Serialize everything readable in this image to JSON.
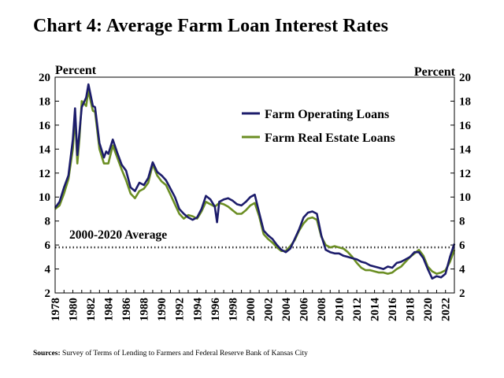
{
  "title": "Chart 4: Average Farm Loan Interest Rates",
  "sources": {
    "label": "Sources:",
    "text": "Survey of Terms of Lending to Farmers and Federal Reserve Bank of Kansas City"
  },
  "chart_data": {
    "type": "line",
    "title": "Chart 4: Average Farm Loan Interest Rates",
    "ylabel_left": "Percent",
    "ylabel_right": "Percent",
    "xlim": [
      1978,
      2023
    ],
    "ylim": [
      2,
      20
    ],
    "yticks": [
      2,
      4,
      6,
      8,
      10,
      12,
      14,
      16,
      18,
      20
    ],
    "xticks": [
      "1978",
      "1980",
      "1982",
      "1984",
      "1986",
      "1988",
      "1990",
      "1992",
      "1994",
      "1996",
      "1998",
      "2000",
      "2002",
      "2004",
      "2006",
      "2008",
      "2010",
      "2012",
      "2014",
      "2016",
      "2018",
      "2020",
      "2022"
    ],
    "grid": false,
    "legend_position": "top-right",
    "reference_line": {
      "label": "2000-2020 Average",
      "value": 5.8,
      "color": "#333333",
      "style": "dotted"
    },
    "series": [
      {
        "name": "Farm Operating Loans",
        "color": "#1c1c6b",
        "points": [
          [
            1978,
            9.1
          ],
          [
            1978.5,
            9.6
          ],
          [
            1979,
            10.8
          ],
          [
            1979.5,
            11.8
          ],
          [
            1980,
            14.8
          ],
          [
            1980.25,
            17.4
          ],
          [
            1980.5,
            13.5
          ],
          [
            1980.75,
            15.5
          ],
          [
            1981,
            17.5
          ],
          [
            1981.5,
            18.3
          ],
          [
            1981.75,
            19.4
          ],
          [
            1982,
            18.5
          ],
          [
            1982.25,
            17.6
          ],
          [
            1982.5,
            17.5
          ],
          [
            1983,
            14.5
          ],
          [
            1983.5,
            13.3
          ],
          [
            1983.75,
            13.8
          ],
          [
            1984,
            13.6
          ],
          [
            1984.5,
            14.8
          ],
          [
            1985,
            13.7
          ],
          [
            1985.5,
            12.7
          ],
          [
            1986,
            12.2
          ],
          [
            1986.5,
            10.8
          ],
          [
            1987,
            10.5
          ],
          [
            1987.5,
            11.2
          ],
          [
            1988,
            11.0
          ],
          [
            1988.5,
            11.6
          ],
          [
            1989,
            12.9
          ],
          [
            1989.5,
            12.1
          ],
          [
            1990,
            11.8
          ],
          [
            1990.5,
            11.4
          ],
          [
            1991,
            10.7
          ],
          [
            1991.5,
            10.0
          ],
          [
            1992,
            9.0
          ],
          [
            1992.5,
            8.6
          ],
          [
            1993,
            8.3
          ],
          [
            1993.5,
            8.1
          ],
          [
            1994,
            8.3
          ],
          [
            1994.5,
            9.0
          ],
          [
            1995,
            10.1
          ],
          [
            1995.5,
            9.8
          ],
          [
            1996,
            9.2
          ],
          [
            1996.25,
            7.9
          ],
          [
            1996.5,
            9.6
          ],
          [
            1997,
            9.8
          ],
          [
            1997.5,
            9.9
          ],
          [
            1998,
            9.7
          ],
          [
            1998.5,
            9.4
          ],
          [
            1999,
            9.3
          ],
          [
            1999.5,
            9.6
          ],
          [
            2000,
            10.0
          ],
          [
            2000.5,
            10.2
          ],
          [
            2001,
            8.7
          ],
          [
            2001.5,
            7.2
          ],
          [
            2002,
            6.8
          ],
          [
            2002.5,
            6.5
          ],
          [
            2003,
            6.0
          ],
          [
            2003.5,
            5.6
          ],
          [
            2004,
            5.4
          ],
          [
            2004.5,
            5.7
          ],
          [
            2005,
            6.5
          ],
          [
            2005.5,
            7.3
          ],
          [
            2006,
            8.3
          ],
          [
            2006.5,
            8.7
          ],
          [
            2007,
            8.8
          ],
          [
            2007.5,
            8.6
          ],
          [
            2008,
            6.8
          ],
          [
            2008.5,
            5.6
          ],
          [
            2009,
            5.4
          ],
          [
            2009.5,
            5.3
          ],
          [
            2010,
            5.3
          ],
          [
            2010.5,
            5.1
          ],
          [
            2011,
            5.0
          ],
          [
            2011.5,
            4.9
          ],
          [
            2012,
            4.8
          ],
          [
            2012.5,
            4.6
          ],
          [
            2013,
            4.5
          ],
          [
            2013.5,
            4.3
          ],
          [
            2014,
            4.2
          ],
          [
            2014.5,
            4.1
          ],
          [
            2015,
            4.0
          ],
          [
            2015.5,
            4.2
          ],
          [
            2016,
            4.1
          ],
          [
            2016.5,
            4.5
          ],
          [
            2017,
            4.6
          ],
          [
            2017.5,
            4.8
          ],
          [
            2018,
            5.0
          ],
          [
            2018.5,
            5.4
          ],
          [
            2019,
            5.4
          ],
          [
            2019.5,
            4.9
          ],
          [
            2020,
            4.0
          ],
          [
            2020.5,
            3.2
          ],
          [
            2021,
            3.4
          ],
          [
            2021.5,
            3.3
          ],
          [
            2022,
            3.6
          ],
          [
            2022.5,
            5.0
          ],
          [
            2023,
            6.1
          ]
        ]
      },
      {
        "name": "Farm Real Estate Loans",
        "color": "#6b8e23",
        "points": [
          [
            1978,
            9.0
          ],
          [
            1978.5,
            9.3
          ],
          [
            1979,
            10.3
          ],
          [
            1979.5,
            11.5
          ],
          [
            1980,
            14.0
          ],
          [
            1980.25,
            16.8
          ],
          [
            1980.5,
            12.8
          ],
          [
            1980.75,
            15.0
          ],
          [
            1981,
            18.0
          ],
          [
            1981.5,
            17.6
          ],
          [
            1981.75,
            18.9
          ],
          [
            1982,
            18.0
          ],
          [
            1982.25,
            17.2
          ],
          [
            1982.5,
            17.1
          ],
          [
            1983,
            14.0
          ],
          [
            1983.5,
            12.8
          ],
          [
            1984,
            12.8
          ],
          [
            1984.5,
            14.3
          ],
          [
            1985,
            13.3
          ],
          [
            1985.5,
            12.3
          ],
          [
            1986,
            11.4
          ],
          [
            1986.5,
            10.3
          ],
          [
            1987,
            9.9
          ],
          [
            1987.5,
            10.5
          ],
          [
            1988,
            10.7
          ],
          [
            1988.5,
            11.2
          ],
          [
            1989,
            12.7
          ],
          [
            1989.5,
            11.8
          ],
          [
            1990,
            11.3
          ],
          [
            1990.5,
            11.0
          ],
          [
            1991,
            10.2
          ],
          [
            1991.5,
            9.4
          ],
          [
            1992,
            8.6
          ],
          [
            1992.5,
            8.2
          ],
          [
            1993,
            8.5
          ],
          [
            1993.5,
            8.4
          ],
          [
            1994,
            8.2
          ],
          [
            1994.5,
            8.8
          ],
          [
            1995,
            9.6
          ],
          [
            1995.5,
            9.4
          ],
          [
            1996,
            9.2
          ],
          [
            1996.5,
            9.5
          ],
          [
            1997,
            9.4
          ],
          [
            1997.5,
            9.2
          ],
          [
            1998,
            8.9
          ],
          [
            1998.5,
            8.6
          ],
          [
            1999,
            8.6
          ],
          [
            1999.5,
            8.9
          ],
          [
            2000,
            9.3
          ],
          [
            2000.5,
            9.5
          ],
          [
            2001,
            8.4
          ],
          [
            2001.5,
            6.9
          ],
          [
            2002,
            6.5
          ],
          [
            2002.5,
            6.2
          ],
          [
            2003,
            5.8
          ],
          [
            2003.5,
            5.5
          ],
          [
            2004,
            5.5
          ],
          [
            2004.5,
            5.9
          ],
          [
            2005,
            6.4
          ],
          [
            2005.5,
            7.2
          ],
          [
            2006,
            7.8
          ],
          [
            2006.5,
            8.2
          ],
          [
            2007,
            8.3
          ],
          [
            2007.5,
            8.1
          ],
          [
            2008,
            6.7
          ],
          [
            2008.5,
            6.0
          ],
          [
            2009,
            5.8
          ],
          [
            2009.5,
            5.9
          ],
          [
            2010,
            5.8
          ],
          [
            2010.5,
            5.7
          ],
          [
            2011,
            5.4
          ],
          [
            2011.5,
            5.0
          ],
          [
            2012,
            4.5
          ],
          [
            2012.5,
            4.1
          ],
          [
            2013,
            3.9
          ],
          [
            2013.5,
            3.9
          ],
          [
            2014,
            3.8
          ],
          [
            2014.5,
            3.7
          ],
          [
            2015,
            3.7
          ],
          [
            2015.5,
            3.6
          ],
          [
            2016,
            3.7
          ],
          [
            2016.5,
            4.0
          ],
          [
            2017,
            4.2
          ],
          [
            2017.5,
            4.6
          ],
          [
            2018,
            5.0
          ],
          [
            2018.5,
            5.3
          ],
          [
            2019,
            5.6
          ],
          [
            2019.5,
            5.1
          ],
          [
            2020,
            4.2
          ],
          [
            2020.5,
            3.8
          ],
          [
            2021,
            3.6
          ],
          [
            2021.5,
            3.7
          ],
          [
            2022,
            3.9
          ],
          [
            2022.5,
            4.6
          ],
          [
            2023,
            5.6
          ]
        ]
      }
    ]
  }
}
